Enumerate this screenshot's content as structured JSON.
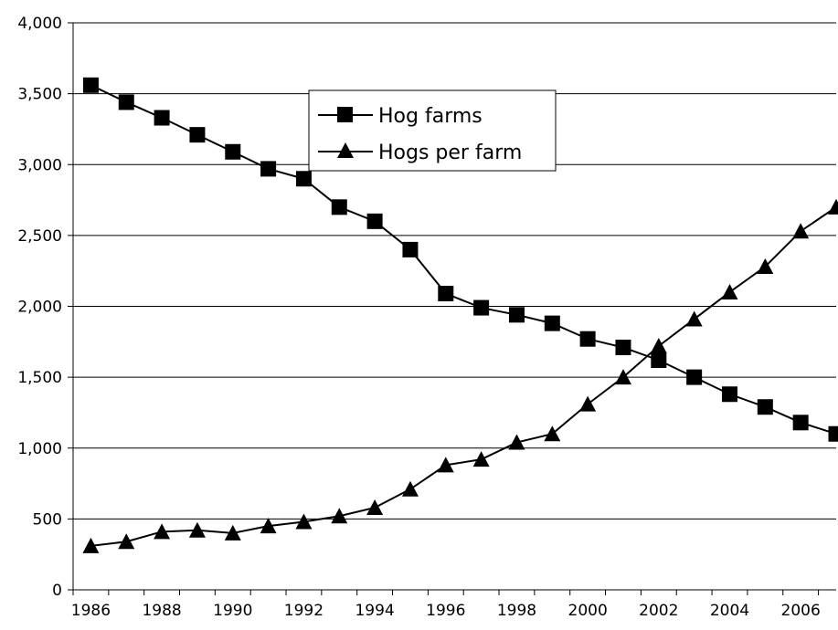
{
  "chart_data": {
    "type": "line",
    "title": "",
    "xlabel": "",
    "ylabel": "",
    "ylim": [
      0,
      4000
    ],
    "yticks": [
      0,
      500,
      1000,
      1500,
      2000,
      2500,
      3000,
      3500,
      4000
    ],
    "ytick_labels": [
      "0",
      "500",
      "1,000",
      "1,500",
      "2,000",
      "2,500",
      "3,000",
      "3,500",
      "4,000"
    ],
    "xlim": [
      1985.5,
      2007
    ],
    "xtick_labels": [
      "1986",
      "1988",
      "1990",
      "1992",
      "1994",
      "1996",
      "1998",
      "2000",
      "2002",
      "2004",
      "2006"
    ],
    "xticks": [
      1986,
      1988,
      1990,
      1992,
      1994,
      1996,
      1998,
      2000,
      2002,
      2004,
      2006
    ],
    "grid": "horizontal",
    "legend_position": "top-center",
    "x": [
      1986,
      1987,
      1988,
      1989,
      1990,
      1991,
      1992,
      1993,
      1994,
      1995,
      1996,
      1997,
      1998,
      1999,
      2000,
      2001,
      2002,
      2003,
      2004,
      2005,
      2006,
      2007
    ],
    "series": [
      {
        "name": "Hog farms",
        "marker": "square",
        "color": "#000000",
        "values": [
          3560,
          3440,
          3330,
          3210,
          3090,
          2970,
          2900,
          2700,
          2600,
          2400,
          2090,
          1990,
          1940,
          1880,
          1770,
          1710,
          1620,
          1500,
          1380,
          1290,
          1180,
          1100
        ]
      },
      {
        "name": "Hogs per farm",
        "marker": "triangle",
        "color": "#000000",
        "values": [
          310,
          340,
          410,
          420,
          400,
          450,
          480,
          520,
          580,
          710,
          880,
          920,
          1040,
          1100,
          1310,
          1500,
          1720,
          1910,
          2100,
          2280,
          2530,
          2700
        ]
      }
    ]
  }
}
